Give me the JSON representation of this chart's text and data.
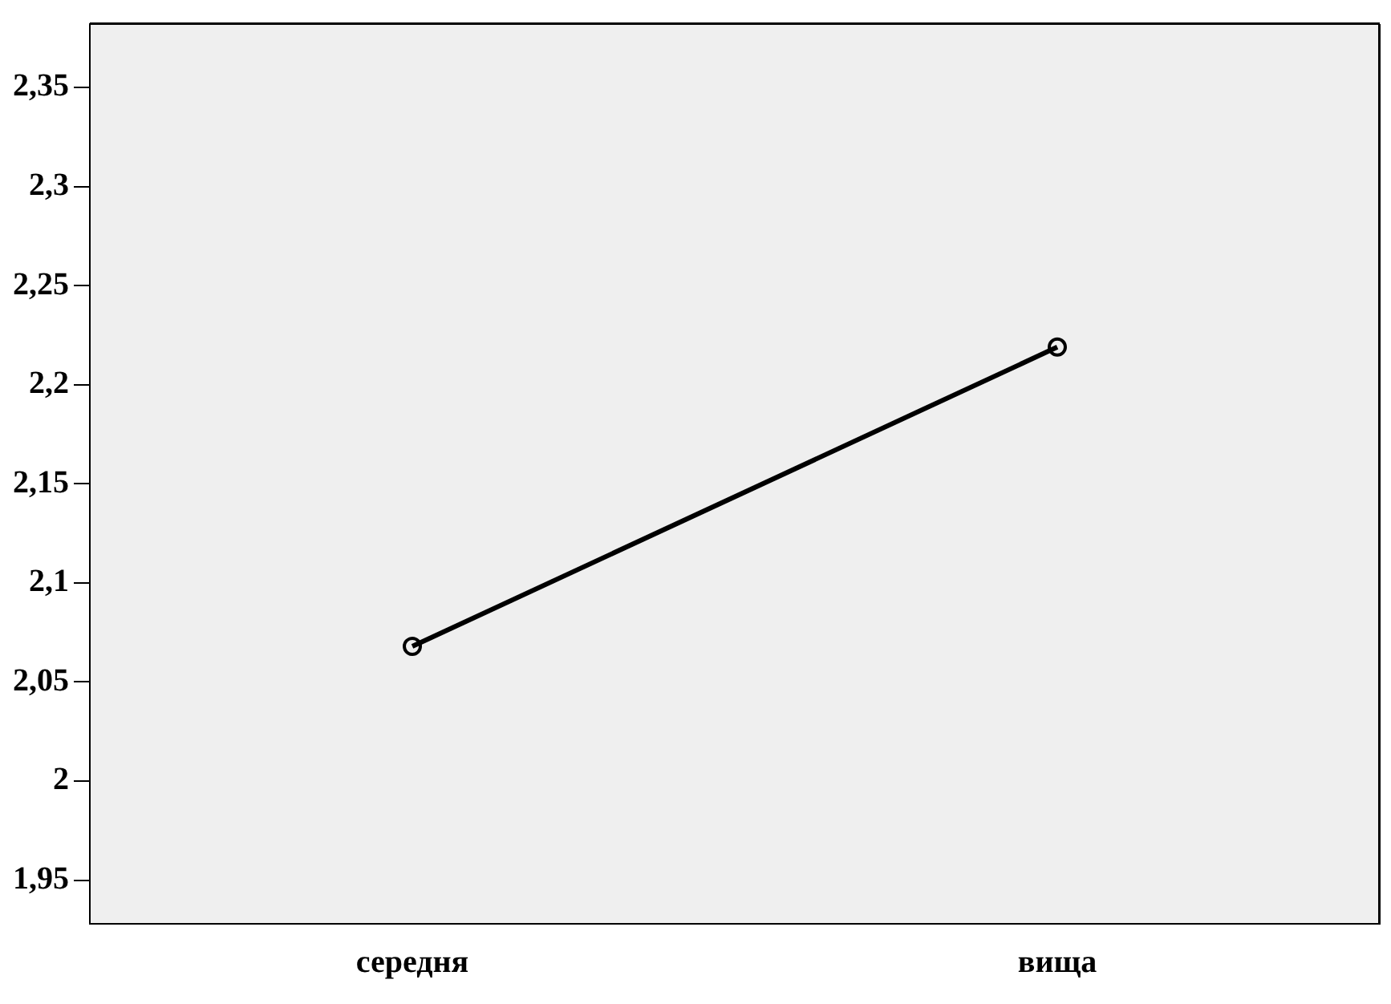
{
  "chart_data": {
    "type": "line",
    "categories": [
      "середня",
      "вища"
    ],
    "series": [
      {
        "color": "#000000",
        "values": [
          2.068,
          2.219
        ]
      }
    ],
    "ylim": [
      1.928,
      2.382
    ],
    "yticks": [
      {
        "value": 1.95,
        "label": "1,95"
      },
      {
        "value": 2,
        "label": "2"
      },
      {
        "value": 2.05,
        "label": "2,05"
      },
      {
        "value": 2.1,
        "label": "2,1"
      },
      {
        "value": 2.15,
        "label": "2,15"
      },
      {
        "value": 2.2,
        "label": "2,2"
      },
      {
        "value": 2.25,
        "label": "2,25"
      },
      {
        "value": 2.3,
        "label": "2,3"
      },
      {
        "value": 2.35,
        "label": "2,35"
      }
    ],
    "grid": false,
    "legend": false,
    "marker": "circle",
    "line_style": "solid"
  }
}
